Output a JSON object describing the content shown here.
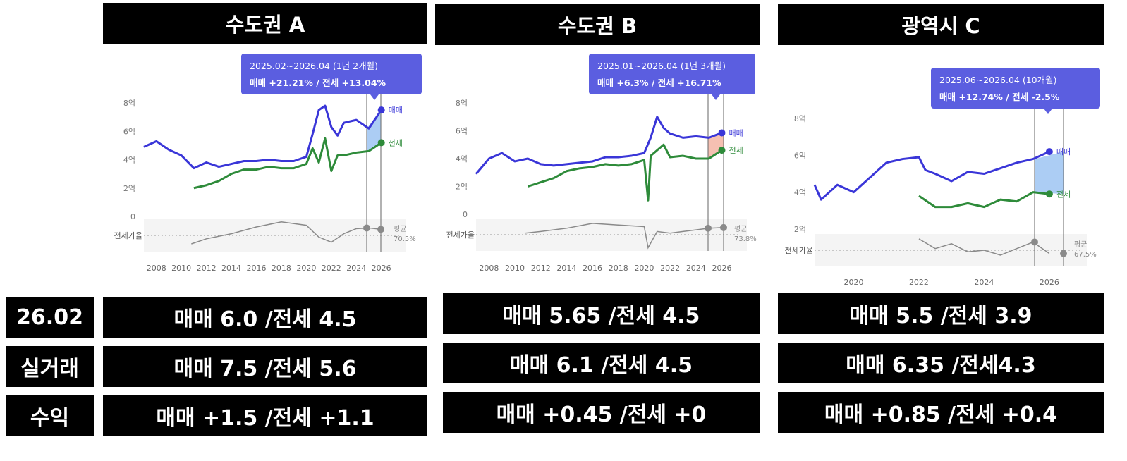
{
  "panels": [
    {
      "title": "수도권 A",
      "tooltip": {
        "period": "2025.02~2026.04 (1년 2개월)",
        "change": "매매 +21.21%  /  전세 +13.04%"
      },
      "series_labels": {
        "sale": "매매",
        "jeonse": "전세"
      },
      "ratio_label": "전세가율",
      "avg_label": "평균",
      "avg_value": "70.5%",
      "y_ticks": [
        "8억",
        "6억",
        "4억",
        "2억",
        "0"
      ],
      "x_ticks": [
        "2008",
        "2010",
        "2012",
        "2014",
        "2016",
        "2018",
        "2020",
        "2022",
        "2024",
        "2026"
      ],
      "shade_color": "#9ec4f2"
    },
    {
      "title": "수도권 B",
      "tooltip": {
        "period": "2025.01~2026.04 (1년 3개월)",
        "change": "매매 +6.3%  /  전세 +16.71%"
      },
      "series_labels": {
        "sale": "매매",
        "jeonse": "전세"
      },
      "ratio_label": "전세가율",
      "avg_label": "평균",
      "avg_value": "73.8%",
      "y_ticks": [
        "8억",
        "6억",
        "4억",
        "2억",
        "0"
      ],
      "x_ticks": [
        "2008",
        "2010",
        "2012",
        "2014",
        "2016",
        "2018",
        "2020",
        "2022",
        "2024",
        "2026"
      ],
      "shade_color": "#f4b5a4"
    },
    {
      "title": "광역시 C",
      "tooltip": {
        "period": "2025.06~2026.04 (10개월)",
        "change": "매매 +12.74%  /  전세 -2.5%"
      },
      "series_labels": {
        "sale": "매매",
        "jeonse": "전세"
      },
      "ratio_label": "전세가율",
      "avg_label": "평균",
      "avg_value": "67.5%",
      "y_ticks": [
        "8억",
        "6억",
        "4억",
        "2억"
      ],
      "x_ticks": [
        "2020",
        "2022",
        "2024",
        "2026"
      ],
      "shade_color": "#9ec4f2"
    }
  ],
  "rows": [
    {
      "label": "26.02",
      "cells": [
        "매매 6.0 /전세 4.5",
        "매매 5.65 /전세 4.5",
        "매매 5.5 /전세 3.9"
      ]
    },
    {
      "label": "실거래",
      "cells": [
        "매매 7.5 /전세 5.6",
        "매매 6.1 /전세 4.5",
        "매매 6.35 /전세4.3"
      ]
    },
    {
      "label": "수익",
      "cells": [
        "매매 +1.5 /전세 +1.1",
        "매매 +0.45 /전세 +0",
        "매매 +0.85 /전세 +0.4"
      ]
    }
  ],
  "colors": {
    "sale": "#3a36d8",
    "jeonse": "#2e8b3a",
    "ratio": "#8a8a8a",
    "tooltip_bg": "#5b5ee0"
  },
  "chart_data": [
    {
      "type": "line",
      "title": "수도권 A",
      "x": [
        2007,
        2008,
        2009,
        2010,
        2011,
        2012,
        2013,
        2014,
        2015,
        2016,
        2017,
        2018,
        2019,
        2020,
        2021,
        2022,
        2023,
        2024,
        2025,
        2026
      ],
      "ylim": [
        0,
        8
      ],
      "series": [
        {
          "name": "매매",
          "x": [
            2007,
            2008,
            2009,
            2010,
            2011,
            2012,
            2013,
            2014,
            2015,
            2016,
            2017,
            2018,
            2019,
            2020,
            2020.5,
            2021,
            2021.5,
            2022,
            2022.5,
            2023,
            2024,
            2025,
            2026
          ],
          "values": [
            4.9,
            5.3,
            4.7,
            4.3,
            3.4,
            3.8,
            3.5,
            3.7,
            3.9,
            3.9,
            4.0,
            3.9,
            3.9,
            4.2,
            5.8,
            7.5,
            7.8,
            6.3,
            5.7,
            6.6,
            6.8,
            6.2,
            7.5
          ]
        },
        {
          "name": "전세",
          "x": [
            2011,
            2012,
            2013,
            2014,
            2015,
            2016,
            2017,
            2018,
            2019,
            2020,
            2020.5,
            2021,
            2021.5,
            2022,
            2022.5,
            2023,
            2024,
            2025,
            2026
          ],
          "values": [
            2.0,
            2.2,
            2.5,
            3.0,
            3.3,
            3.3,
            3.5,
            3.4,
            3.4,
            3.7,
            4.8,
            3.8,
            5.5,
            3.2,
            4.3,
            4.3,
            4.5,
            4.6,
            5.2
          ]
        }
      ]
    },
    {
      "type": "line",
      "title": "수도권 B",
      "x": [
        2007,
        2008,
        2009,
        2010,
        2011,
        2012,
        2013,
        2014,
        2015,
        2016,
        2017,
        2018,
        2019,
        2020,
        2021,
        2022,
        2023,
        2024,
        2025,
        2026
      ],
      "ylim": [
        0,
        8
      ],
      "series": [
        {
          "name": "매매",
          "x": [
            2007,
            2008,
            2009,
            2010,
            2011,
            2012,
            2013,
            2014,
            2015,
            2016,
            2017,
            2018,
            2019,
            2020,
            2020.5,
            2021,
            2021.5,
            2022,
            2023,
            2024,
            2025,
            2026
          ],
          "values": [
            2.9,
            4.0,
            4.4,
            3.8,
            4.0,
            3.6,
            3.5,
            3.6,
            3.7,
            3.8,
            4.1,
            4.1,
            4.2,
            4.4,
            5.5,
            7.0,
            6.2,
            5.8,
            5.5,
            5.6,
            5.5,
            5.85
          ]
        },
        {
          "name": "전세",
          "x": [
            2011,
            2012,
            2013,
            2014,
            2015,
            2016,
            2017,
            2018,
            2019,
            2020,
            2020.3,
            2020.5,
            2021,
            2021.5,
            2022,
            2023,
            2024,
            2025,
            2026
          ],
          "values": [
            2.0,
            2.3,
            2.6,
            3.1,
            3.3,
            3.4,
            3.6,
            3.5,
            3.6,
            3.9,
            1.0,
            4.2,
            4.6,
            5.0,
            4.1,
            4.2,
            4.0,
            4.0,
            4.6
          ]
        }
      ]
    },
    {
      "type": "line",
      "title": "광역시 C",
      "x": [
        2019,
        2020,
        2021,
        2022,
        2023,
        2024,
        2025,
        2026
      ],
      "ylim": [
        2,
        8
      ],
      "series": [
        {
          "name": "매매",
          "x": [
            2018.8,
            2019,
            2019.5,
            2020,
            2020.5,
            2021,
            2021.5,
            2022,
            2022.2,
            2022.5,
            2023,
            2023.5,
            2024,
            2024.5,
            2025,
            2025.5,
            2026
          ],
          "values": [
            4.4,
            3.6,
            4.4,
            4.0,
            4.8,
            5.6,
            5.8,
            5.9,
            5.2,
            5.0,
            4.6,
            5.1,
            5.0,
            5.3,
            5.6,
            5.8,
            6.2
          ]
        },
        {
          "name": "전세",
          "x": [
            2022,
            2022.5,
            2023,
            2023.5,
            2024,
            2024.5,
            2025,
            2025.5,
            2026
          ],
          "values": [
            3.8,
            3.2,
            3.2,
            3.4,
            3.2,
            3.6,
            3.5,
            4.0,
            3.9
          ]
        }
      ]
    }
  ]
}
